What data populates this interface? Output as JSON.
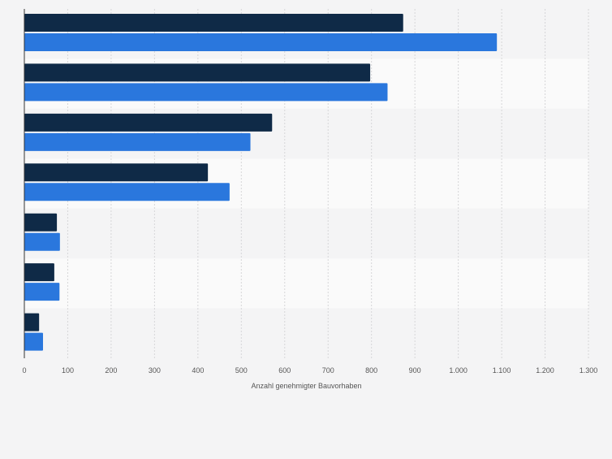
{
  "chart_data": {
    "type": "bar",
    "orientation": "horizontal",
    "title": "",
    "xlabel": "Anzahl genehmigter Bauvorhaben",
    "ylabel": "",
    "xlim": [
      0,
      1300
    ],
    "x_ticks": [
      0,
      100,
      200,
      300,
      400,
      500,
      600,
      700,
      800,
      900,
      1000,
      1100,
      1200,
      1300
    ],
    "x_tick_labels": [
      "0",
      "100",
      "200",
      "300",
      "400",
      "500",
      "600",
      "700",
      "800",
      "900",
      "1.000",
      "1.100",
      "1.200",
      "1.300"
    ],
    "categories": [
      "",
      "",
      "",
      "",
      "",
      "",
      ""
    ],
    "series": [
      {
        "color": "#0f2a47",
        "values": [
          873,
          797,
          571,
          423,
          75,
          69,
          34
        ]
      },
      {
        "color": "#2a77dd",
        "values": [
          1089,
          837,
          521,
          473,
          82,
          81,
          43
        ]
      }
    ],
    "grid": true,
    "legend": "none"
  }
}
